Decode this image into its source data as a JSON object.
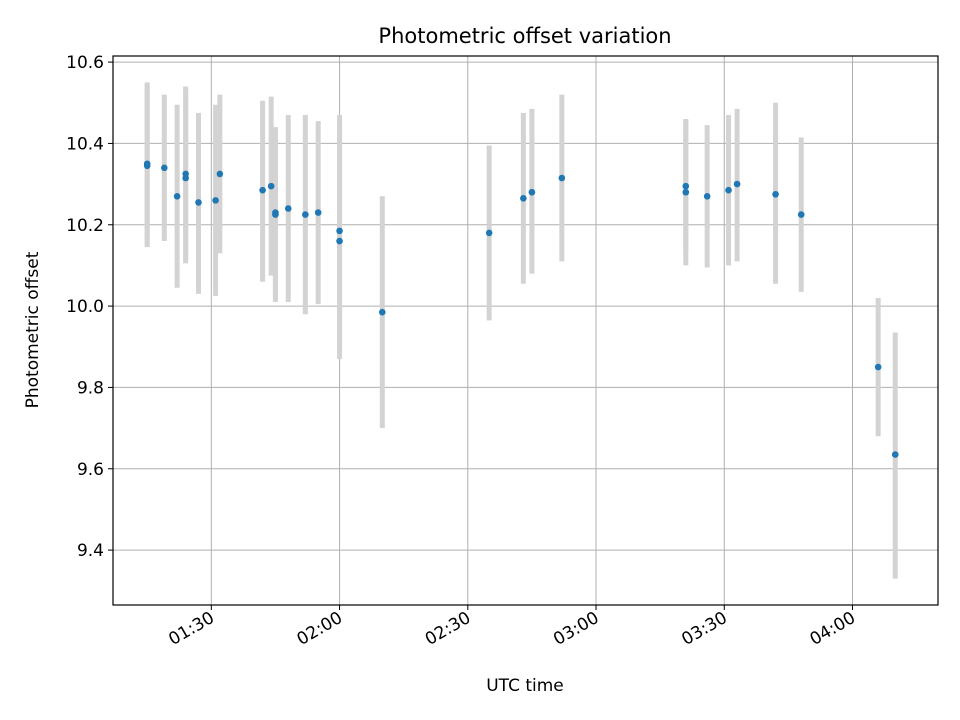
{
  "chart_data": {
    "type": "scatter",
    "title": "Photometric offset variation",
    "xlabel": "UTC time",
    "ylabel": "Photometric offset",
    "x_ticks": [
      "01:30",
      "02:00",
      "02:30",
      "03:00",
      "03:30",
      "04:00"
    ],
    "y_ticks": [
      "9.4",
      "9.6",
      "9.8",
      "10.0",
      "10.2",
      "10.4",
      "10.6"
    ],
    "xlim": [
      "01:07",
      "04:20"
    ],
    "ylim": [
      9.265,
      10.615
    ],
    "grid": true,
    "point_color": "#1f77b4",
    "errorbar_color": "#d3d3d3",
    "series": [
      {
        "x": [
          "01:15",
          "01:15",
          "01:19",
          "01:22",
          "01:24",
          "01:24",
          "01:27",
          "01:31",
          "01:32",
          "01:42",
          "01:44",
          "01:45",
          "01:45",
          "01:48",
          "01:52",
          "01:55",
          "02:00",
          "02:00",
          "02:10",
          "02:35",
          "02:43",
          "02:45",
          "02:52",
          "03:21",
          "03:21",
          "03:26",
          "03:31",
          "03:33",
          "03:42",
          "03:48",
          "04:06",
          "04:10"
        ],
        "y": [
          10.345,
          10.35,
          10.34,
          10.27,
          10.325,
          10.315,
          10.255,
          10.26,
          10.325,
          10.285,
          10.295,
          10.23,
          10.225,
          10.24,
          10.225,
          10.23,
          10.16,
          10.185,
          9.985,
          10.18,
          10.265,
          10.28,
          10.315,
          10.28,
          10.295,
          10.27,
          10.285,
          10.3,
          10.275,
          10.225,
          9.85,
          9.635
        ],
        "yerr_low": [
          10.145,
          10.15,
          10.16,
          10.045,
          10.105,
          10.115,
          10.03,
          10.025,
          10.13,
          10.06,
          10.075,
          10.015,
          10.01,
          10.01,
          9.98,
          10.005,
          9.87,
          9.9,
          9.7,
          9.965,
          10.055,
          10.08,
          10.11,
          10.1,
          10.13,
          10.095,
          10.1,
          10.11,
          10.055,
          10.035,
          9.68,
          9.33
        ],
        "yerr_high": [
          10.545,
          10.55,
          10.52,
          10.495,
          10.54,
          10.525,
          10.475,
          10.495,
          10.52,
          10.505,
          10.515,
          10.44,
          10.435,
          10.47,
          10.47,
          10.455,
          10.445,
          10.47,
          10.27,
          10.395,
          10.475,
          10.485,
          10.52,
          10.46,
          10.455,
          10.445,
          10.47,
          10.485,
          10.5,
          10.415,
          10.02,
          9.935
        ]
      }
    ]
  }
}
